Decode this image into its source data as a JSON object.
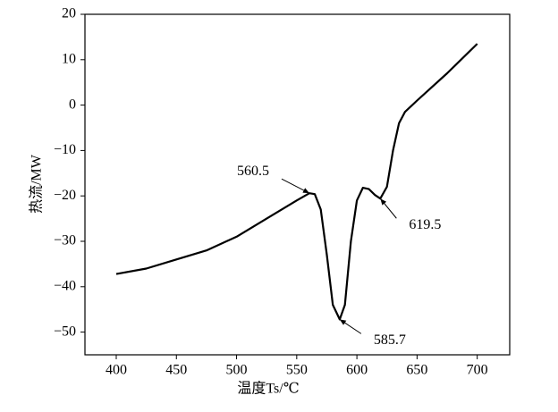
{
  "chart_data": {
    "type": "line",
    "xlabel": "温度Ts/℃",
    "ylabel": "热流/MW",
    "series": [
      {
        "color": "#000000",
        "x": [
          400,
          425,
          450,
          475,
          500,
          525,
          550,
          560.5,
          565,
          570,
          575,
          580,
          585.7,
          590,
          595,
          600,
          605,
          610,
          615,
          619.5,
          625,
          630,
          635,
          640,
          650,
          675,
          700
        ],
        "values": [
          -37.2,
          -36,
          -34,
          -32,
          -29,
          -25,
          -21,
          -19.4,
          -19.6,
          -23,
          -33,
          -44,
          -47.2,
          -44,
          -30,
          -21,
          -18.2,
          -18.5,
          -19.8,
          -20.6,
          -18,
          -10,
          -4,
          -1.5,
          1,
          7,
          13.5
        ]
      }
    ],
    "xlim": [
      374,
      727
    ],
    "ylim": [
      -55,
      20
    ],
    "xticks": [
      400,
      450,
      500,
      550,
      600,
      650,
      700
    ],
    "yticks": [
      {
        "value": -50,
        "label": "−50"
      },
      {
        "value": -40,
        "label": "−40"
      },
      {
        "value": -30,
        "label": "−30"
      },
      {
        "value": -20,
        "label": "−20"
      },
      {
        "value": -10,
        "label": "−10"
      },
      0,
      10,
      20
    ],
    "annotations": [
      {
        "label": "560.5",
        "x": 560.5,
        "y": -19.4
      },
      {
        "label": "585.7",
        "x": 585.7,
        "y": -47.2
      },
      {
        "label": "619.5",
        "x": 619.5,
        "y": -20.6
      }
    ]
  }
}
